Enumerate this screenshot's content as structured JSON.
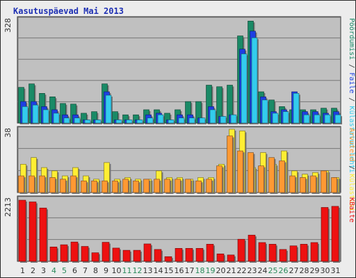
{
  "window": {
    "title": "Kasutuspäevad Mai 2013"
  },
  "colors": {
    "background": "#ececec",
    "plot_bg": "#c0c0c0",
    "visits": "#1a8a66",
    "pages": "#1d3fe3",
    "files": "#33ccee",
    "hosts": "#ffee33",
    "hits": "#ff9933",
    "kbytes": "#ee1111",
    "ticks_weekday": "#333333",
    "ticks_weekend": "#2a8c5c"
  },
  "chart_data": [
    {
      "type": "bar",
      "name": "top",
      "categories": [
        "1",
        "2",
        "3",
        "4",
        "5",
        "6",
        "7",
        "8",
        "9",
        "10",
        "11",
        "12",
        "13",
        "14",
        "15",
        "16",
        "17",
        "18",
        "19",
        "20",
        "21",
        "22",
        "23",
        "24",
        "25",
        "26",
        "27",
        "28",
        "29",
        "30",
        "31"
      ],
      "ymax_label": "328",
      "ylim": [
        0,
        328
      ],
      "right_labels": [
        {
          "text": "Pöördumisi",
          "color": "#1a8a66"
        },
        {
          "text": " / ",
          "color": "#333333"
        },
        {
          "text": "Faile",
          "color": "#1d3fe3"
        },
        {
          "text": " / ",
          "color": "#333333"
        },
        {
          "text": "Külastatud lehti",
          "color": "#33ccee"
        }
      ],
      "series": [
        {
          "key": "visits",
          "color": "#1a8a66",
          "values": [
            113,
            124,
            94,
            83,
            62,
            60,
            31,
            36,
            124,
            36,
            26,
            26,
            42,
            42,
            31,
            42,
            68,
            68,
            120,
            115,
            120,
            276,
            323,
            99,
            73,
            52,
            42,
            42,
            42,
            47,
            47
          ]
        },
        {
          "key": "pages",
          "color": "#1d3fe3",
          "values": [
            68,
            68,
            52,
            42,
            26,
            26,
            10,
            10,
            99,
            10,
            10,
            10,
            26,
            31,
            10,
            26,
            26,
            16,
            52,
            21,
            26,
            234,
            291,
            83,
            36,
            42,
            99,
            36,
            36,
            31,
            36
          ]
        },
        {
          "key": "files",
          "color": "#33ccee",
          "values": [
            52,
            57,
            42,
            31,
            16,
            16,
            10,
            10,
            88,
            10,
            10,
            10,
            16,
            26,
            10,
            16,
            16,
            16,
            42,
            21,
            26,
            219,
            270,
            73,
            31,
            36,
            94,
            26,
            26,
            26,
            26
          ]
        }
      ]
    },
    {
      "type": "bar",
      "name": "middle",
      "categories": [
        "1",
        "2",
        "3",
        "4",
        "5",
        "6",
        "7",
        "8",
        "9",
        "10",
        "11",
        "12",
        "13",
        "14",
        "15",
        "16",
        "17",
        "18",
        "19",
        "20",
        "21",
        "22",
        "23",
        "24",
        "25",
        "26",
        "27",
        "28",
        "29",
        "30",
        "31"
      ],
      "ymax_label": "38",
      "ylim": [
        0,
        38
      ],
      "right_labels": [
        {
          "text": "Arvuteid",
          "color": "#ff9933"
        },
        {
          "text": " / ",
          "color": "#333333"
        },
        {
          "text": "Külastusi",
          "color": "#ffee33"
        }
      ],
      "series": [
        {
          "key": "hosts",
          "color": "#ffee33",
          "values": [
            17,
            21,
            15,
            13,
            10,
            15,
            10,
            8,
            18,
            8,
            9,
            8,
            8,
            13,
            9,
            9,
            8,
            9,
            9,
            17,
            38,
            37,
            15,
            24,
            17,
            25,
            13,
            11,
            12,
            13,
            9
          ]
        },
        {
          "key": "hits",
          "color": "#ff9933",
          "values": [
            10,
            10,
            10,
            9,
            8,
            10,
            7,
            7,
            7,
            7,
            8,
            7,
            8,
            8,
            8,
            8,
            8,
            7,
            8,
            16,
            34,
            25,
            24,
            16,
            21,
            19,
            10,
            9,
            10,
            13,
            9
          ]
        }
      ]
    },
    {
      "type": "bar",
      "name": "bottom",
      "categories": [
        "1",
        "2",
        "3",
        "4",
        "5",
        "6",
        "7",
        "8",
        "9",
        "10",
        "11",
        "12",
        "13",
        "14",
        "15",
        "16",
        "17",
        "18",
        "19",
        "20",
        "21",
        "22",
        "23",
        "24",
        "25",
        "26",
        "27",
        "28",
        "29",
        "30",
        "31"
      ],
      "ymax_label": "2213",
      "ylim": [
        0,
        2213
      ],
      "right_labels": [
        {
          "text": "KBaite",
          "color": "#ee1111"
        }
      ],
      "series": [
        {
          "key": "kbytes",
          "color": "#ee1111",
          "values": [
            2213,
            2150,
            1930,
            520,
            600,
            700,
            540,
            310,
            690,
            480,
            400,
            400,
            630,
            430,
            170,
            470,
            470,
            470,
            620,
            270,
            230,
            800,
            950,
            680,
            620,
            430,
            560,
            620,
            680,
            1950,
            1990
          ]
        }
      ]
    }
  ],
  "weekend_days": [
    "4",
    "5",
    "11",
    "12",
    "18",
    "19",
    "25",
    "26"
  ]
}
